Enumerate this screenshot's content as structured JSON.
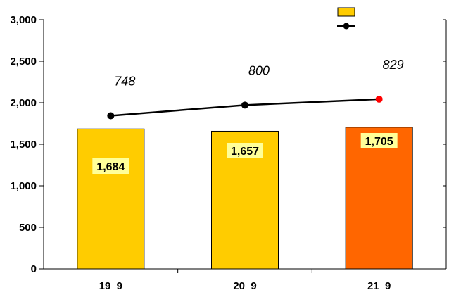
{
  "chart_data": {
    "type": "bar",
    "categories": [
      "19  9",
      "20  9",
      "21  9"
    ],
    "ylim": [
      0,
      3000
    ],
    "yticks": [
      "0",
      "500",
      "1,000",
      "1,500",
      "2,000",
      "2,500",
      "3,000"
    ],
    "grid": false,
    "legend": "top-right",
    "series": [
      {
        "kind": "bar",
        "values": [
          1684,
          1657,
          1705
        ],
        "labels": [
          "1,684",
          "1,657",
          "1,705"
        ],
        "colors": [
          "#ffcc00",
          "#ffcc00",
          "#ff6600"
        ]
      },
      {
        "kind": "line",
        "values": [
          748,
          800,
          829
        ],
        "labels": [
          "748",
          "800",
          "829"
        ],
        "color": "#000000",
        "highlight_color": "#ff0000"
      }
    ],
    "title": "",
    "xlabel": "",
    "ylabel": ""
  }
}
